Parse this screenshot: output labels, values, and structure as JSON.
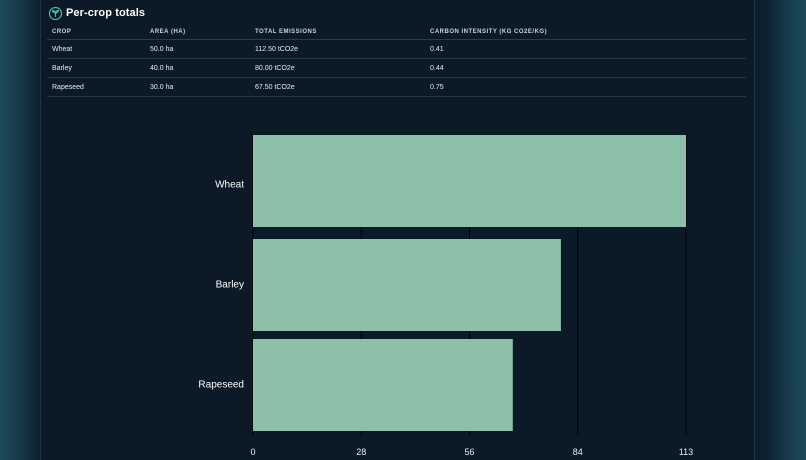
{
  "section": {
    "title": "Per-crop totals",
    "icon": "sprout-icon"
  },
  "table": {
    "columns": [
      "CROP",
      "AREA (HA)",
      "TOTAL EMISSIONS",
      "CARBON INTENSITY (KG CO2E/KG)"
    ],
    "rows": [
      [
        "Wheat",
        "50.0 ha",
        "112.50 tCO2e",
        "0.41"
      ],
      [
        "Barley",
        "40.0 ha",
        "80.00 tCO2e",
        "0.44"
      ],
      [
        "Rapeseed",
        "30.0 ha",
        "67.50 tCO2e",
        "0.75"
      ]
    ]
  },
  "colors": {
    "bar": "#8dc0a8",
    "accent": "#4fc3a1",
    "panel": "#0c1a27"
  },
  "chart_data": {
    "type": "bar",
    "orientation": "horizontal",
    "categories": [
      "Wheat",
      "Barley",
      "Rapeseed"
    ],
    "values": [
      112.5,
      80.0,
      67.5
    ],
    "xlim": [
      0,
      112.5
    ],
    "xticks": [
      "0",
      "28",
      "56",
      "84",
      "113"
    ],
    "tick_values": [
      0,
      28.125,
      56.25,
      84.375,
      112.5
    ],
    "title": "",
    "xlabel": "",
    "ylabel": "",
    "grid": true
  }
}
